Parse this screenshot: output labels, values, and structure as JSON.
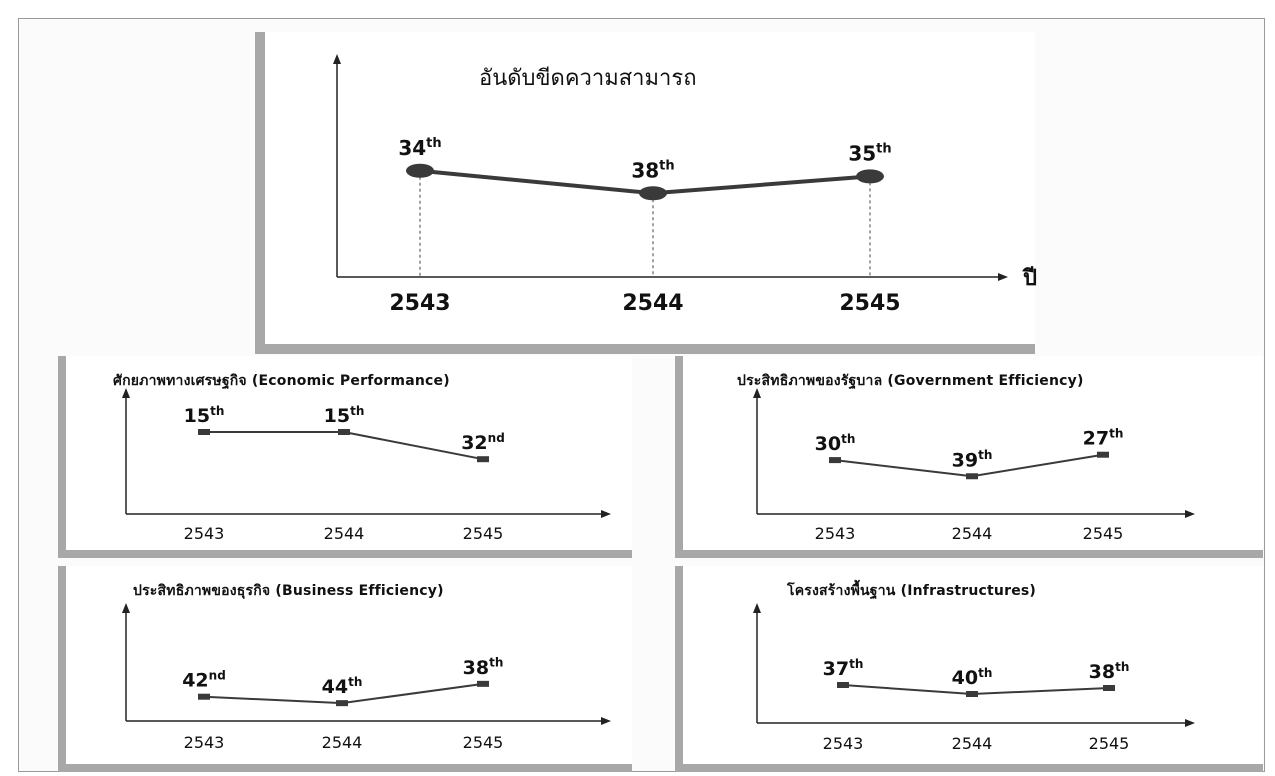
{
  "chart_data": [
    {
      "type": "line",
      "title": "อันดับขีดความสามารถ",
      "xlabel": "ปี",
      "ylabel": "",
      "categories": [
        "2543",
        "2544",
        "2545"
      ],
      "values": [
        34,
        38,
        35
      ],
      "point_labels": [
        {
          "num": "34",
          "suffix": "th"
        },
        {
          "num": "38",
          "suffix": "th"
        },
        {
          "num": "35",
          "suffix": "th"
        }
      ],
      "ylim": [
        44,
        28
      ],
      "y_inverted": true,
      "marker": "ellipse",
      "grid": false,
      "dashed_drop_lines": true
    },
    {
      "type": "line",
      "title": "ศักยภาพทางเศรษฐกิจ (Economic Performance)",
      "xlabel": "",
      "ylabel": "",
      "categories": [
        "2543",
        "2544",
        "2545"
      ],
      "values": [
        15,
        15,
        32
      ],
      "point_labels": [
        {
          "num": "15",
          "suffix": "th"
        },
        {
          "num": "15",
          "suffix": "th"
        },
        {
          "num": "32",
          "suffix": "nd"
        }
      ],
      "ylim": [
        55,
        5
      ],
      "y_inverted": true,
      "marker": "bar",
      "grid": false
    },
    {
      "type": "line",
      "title": "ประสิทธิภาพของรัฐบาล (Government Efficiency)",
      "xlabel": "",
      "ylabel": "",
      "categories": [
        "2543",
        "2544",
        "2545"
      ],
      "values": [
        30,
        39,
        27
      ],
      "point_labels": [
        {
          "num": "30",
          "suffix": "th"
        },
        {
          "num": "39",
          "suffix": "th"
        },
        {
          "num": "27",
          "suffix": "th"
        }
      ],
      "ylim": [
        50,
        11
      ],
      "y_inverted": true,
      "marker": "bar",
      "grid": false
    },
    {
      "type": "line",
      "title": "ประสิทธิภาพของธุรกิจ (Business Efficiency)",
      "xlabel": "",
      "ylabel": "",
      "categories": [
        "2543",
        "2544",
        "2545"
      ],
      "values": [
        42,
        44,
        38
      ],
      "point_labels": [
        {
          "num": "42",
          "suffix": "nd"
        },
        {
          "num": "44",
          "suffix": "th"
        },
        {
          "num": "38",
          "suffix": "th"
        }
      ],
      "ylim": [
        48,
        20
      ],
      "y_inverted": true,
      "marker": "bar",
      "grid": false
    },
    {
      "type": "line",
      "title": "โครงสร้างพื้นฐาน (Infrastructures)",
      "xlabel": "",
      "ylabel": "",
      "categories": [
        "2543",
        "2544",
        "2545"
      ],
      "values": [
        37,
        40,
        38
      ],
      "point_labels": [
        {
          "num": "37",
          "suffix": "th"
        },
        {
          "num": "40",
          "suffix": "th"
        },
        {
          "num": "38",
          "suffix": "th"
        }
      ],
      "ylim": [
        44,
        24
      ],
      "y_inverted": true,
      "marker": "bar",
      "grid": false
    }
  ],
  "colors": {
    "line": "#3a3a3a",
    "marker": "#3a3a3a",
    "text": "#111111",
    "panel_shadow": "#a8a8a8",
    "panel_bg": "#ffffff"
  }
}
